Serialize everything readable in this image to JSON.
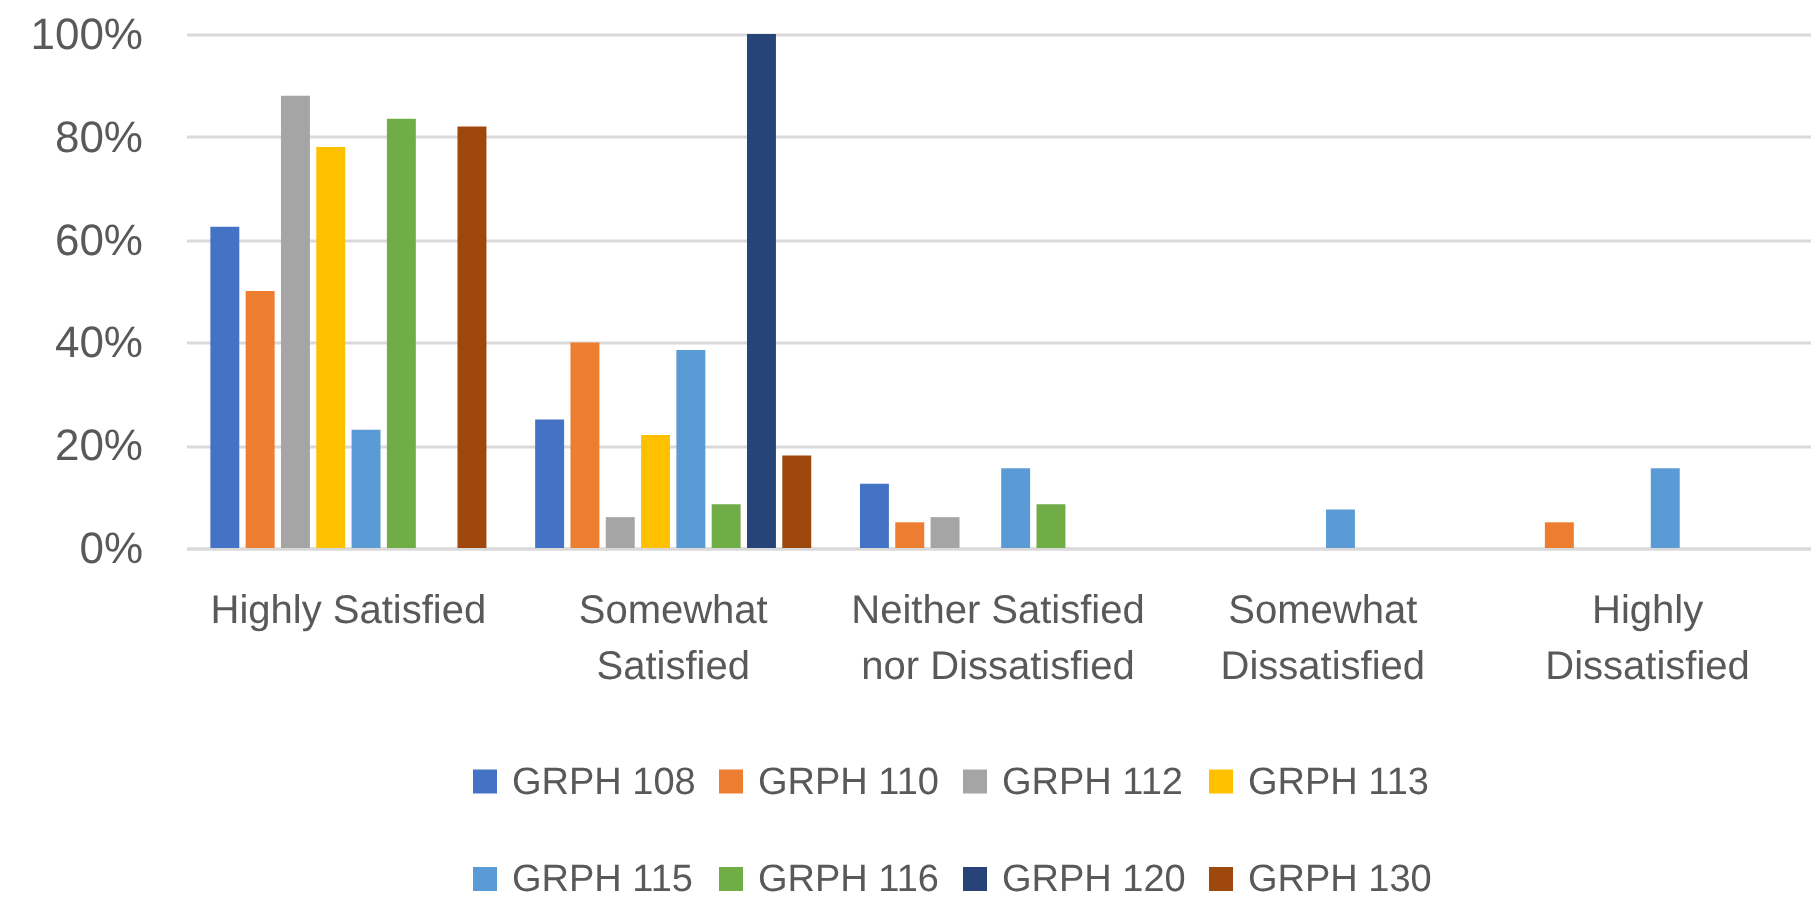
{
  "chart_data": {
    "type": "bar",
    "categories": [
      "Highly Satisfied",
      "Somewhat Satisfied",
      "Neither Satisfied nor Dissatisfied",
      "Somewhat Dissatisfied",
      "Highly Dissatisfied"
    ],
    "series": [
      {
        "name": "GRPH 108",
        "color": "#4472c4",
        "values": [
          62.5,
          25,
          12.5,
          null,
          null
        ]
      },
      {
        "name": "GRPH 110",
        "color": "#ed7d31",
        "values": [
          50,
          40,
          5,
          null,
          5
        ]
      },
      {
        "name": "GRPH 112",
        "color": "#a5a5a5",
        "values": [
          88,
          6,
          6,
          null,
          null
        ]
      },
      {
        "name": "GRPH 113",
        "color": "#ffc000",
        "values": [
          78,
          22,
          null,
          null,
          null
        ]
      },
      {
        "name": "GRPH 115",
        "color": "#5b9bd5",
        "values": [
          23,
          38.5,
          15.5,
          7.5,
          15.5
        ]
      },
      {
        "name": "GRPH 116",
        "color": "#70ad47",
        "values": [
          83.5,
          8.5,
          8.5,
          null,
          null
        ]
      },
      {
        "name": "GRPH 120",
        "color": "#264478",
        "values": [
          null,
          100,
          null,
          null,
          null
        ]
      },
      {
        "name": "GRPH 130",
        "color": "#9e480e",
        "values": [
          82,
          18,
          null,
          null,
          null
        ]
      }
    ],
    "ylim": [
      0,
      100
    ],
    "yticks": [
      {
        "value": 0,
        "label": "0%"
      },
      {
        "value": 20,
        "label": "20%"
      },
      {
        "value": 40,
        "label": "40%"
      },
      {
        "value": 60,
        "label": "60%"
      },
      {
        "value": 80,
        "label": "80%"
      },
      {
        "value": 100,
        "label": "100%"
      }
    ],
    "grid": "y",
    "legend": "bottom"
  }
}
